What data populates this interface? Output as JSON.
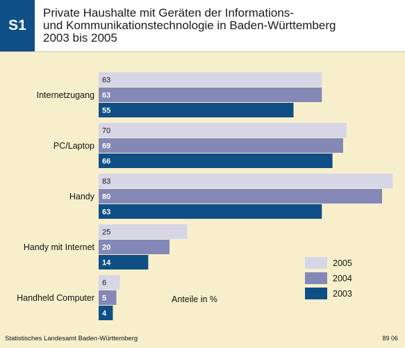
{
  "header": {
    "badge": "S1",
    "title": "Private Haushalte mit Geräten der Informations-\nund Kommunikationstechnologie in Baden-Württemberg\n2003 bis 2005"
  },
  "footer": {
    "source": "Statistisches Landesamt Baden-Württemberg",
    "code": "89 06"
  },
  "chart_data": {
    "type": "bar",
    "orientation": "horizontal",
    "title": "Private Haushalte mit Geräten der Informations- und Kommunikationstechnologie in Baden-Württemberg 2003 bis 2005",
    "unit_note": "Anteile in %",
    "categories": [
      "Internetzugang",
      "PC/Laptop",
      "Handy",
      "Handy mit Internet",
      "Handheld Computer"
    ],
    "series": [
      {
        "name": "2005",
        "color": "#d6d6e7",
        "values": [
          63,
          70,
          83,
          25,
          6
        ]
      },
      {
        "name": "2004",
        "color": "#8388b6",
        "values": [
          63,
          69,
          80,
          20,
          5
        ]
      },
      {
        "name": "2003",
        "color": "#0f4f86",
        "values": [
          55,
          66,
          63,
          14,
          4
        ]
      }
    ],
    "legend_order": [
      "2005",
      "2004",
      "2003"
    ],
    "legend_position": "bottom-right",
    "xlim": [
      0,
      83
    ],
    "grid": false
  }
}
